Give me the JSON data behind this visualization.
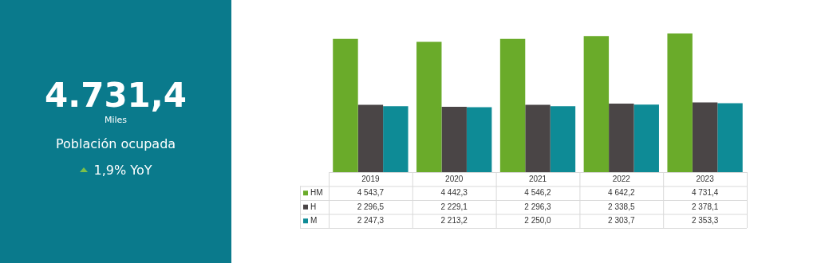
{
  "chart_data": [
    {
      "type": "other",
      "title": "4.731,4",
      "subtitle": "Miles",
      "annotations": [
        "Población ocupada",
        "1,9% YoY"
      ]
    },
    {
      "type": "bar",
      "categories": [
        "2019",
        "2020",
        "2021",
        "2022",
        "2023"
      ],
      "legend": "bottom",
      "series": [
        {
          "name": "HM",
          "color": "#6aab2a",
          "values": [
            4543.7,
            4442.3,
            4546.2,
            4642.2,
            4731.4
          ],
          "value_labels": [
            "4 543,7",
            "4 442,3",
            "4 546,2",
            "4 642,2",
            "4 731,4"
          ]
        },
        {
          "name": "H",
          "color": "#4a4546",
          "values": [
            2296.5,
            2229.1,
            2296.3,
            2338.5,
            2378.1
          ],
          "value_labels": [
            "2 296,5",
            "2 229,1",
            "2 296,3",
            "2 338,5",
            "2 378,1"
          ]
        },
        {
          "name": "M",
          "color": "#0e8b96",
          "values": [
            2247.3,
            2213.2,
            2250.0,
            2303.7,
            2353.3
          ],
          "value_labels": [
            "2 247,3",
            "2 213,2",
            "2 250,0",
            "2 303,7",
            "2 353,3"
          ]
        }
      ]
    }
  ]
}
